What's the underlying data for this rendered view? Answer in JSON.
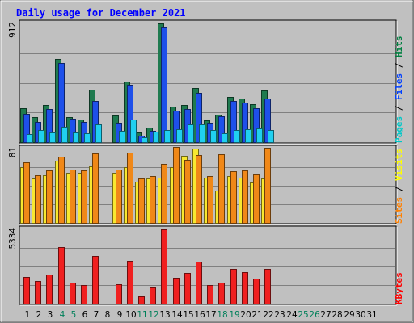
{
  "chart_data": {
    "type": "bar",
    "title": "Daily usage for December 2021",
    "days": [
      "1",
      "2",
      "3",
      "4",
      "5",
      "6",
      "7",
      "8",
      "9",
      "10",
      "11",
      "12",
      "13",
      "14",
      "15",
      "16",
      "17",
      "18",
      "19",
      "20",
      "21",
      "22",
      "23",
      "24",
      "25",
      "26",
      "27",
      "28",
      "29",
      "30",
      "31"
    ],
    "weekend_days": [
      4,
      5,
      11,
      12,
      18,
      19,
      25,
      26
    ],
    "panels": [
      {
        "id": "hits-files-pages",
        "max_label": "912",
        "max": 912,
        "legend": [
          {
            "text": "Pages",
            "color": "#00c8c8"
          },
          {
            "text": " / ",
            "color": "#000000"
          },
          {
            "text": "Files",
            "color": "#0040ff"
          },
          {
            "text": " / ",
            "color": "#000000"
          },
          {
            "text": "Hits",
            "color": "#008040"
          }
        ],
        "series": [
          {
            "name": "Hits",
            "color": "#1f7a4f",
            "offset": 0,
            "values": [
              262,
              190,
              283,
              639,
              194,
              172,
              402,
              0,
              207,
              467,
              75,
              110,
              912,
              276,
              286,
              415,
              168,
              210,
              345,
              333,
              294,
              397,
              0,
              0,
              0,
              0,
              0,
              0,
              0,
              0,
              0
            ]
          },
          {
            "name": "Files",
            "color": "#1e50ea",
            "offset": 4,
            "values": [
              218,
              157,
              253,
              609,
              178,
              158,
              318,
              0,
              146,
              441,
              52,
              86,
              882,
              239,
              256,
              381,
              149,
              197,
              319,
              302,
              259,
              336,
              0,
              0,
              0,
              0,
              0,
              0,
              0,
              0,
              0
            ]
          },
          {
            "name": "Pages",
            "color": "#20d0f0",
            "offset": 8,
            "values": [
              64,
              95,
              77,
              116,
              72,
              67,
              136,
              0,
              84,
              172,
              37,
              78,
              95,
              102,
              138,
              139,
              95,
              68,
              95,
              101,
              105,
              91,
              0,
              0,
              0,
              0,
              0,
              0,
              0,
              0,
              0
            ]
          }
        ]
      },
      {
        "id": "visits-sites",
        "max_label": "81",
        "max": 81,
        "legend": [
          {
            "text": "Sites",
            "color": "#ff8000"
          },
          {
            "text": " / ",
            "color": "#000000"
          },
          {
            "text": "Visits",
            "color": "#ffff00"
          }
        ],
        "series": [
          {
            "name": "Visits",
            "color": "#f8e830",
            "offset": 0,
            "values": [
              61,
              48,
              52,
              68,
              55,
              55,
              62,
              0,
              55,
              61,
              45,
              48,
              49,
              61,
              73,
              81,
              49,
              35,
              51,
              49,
              44,
              48,
              0,
              0,
              0,
              0,
              0,
              0,
              0,
              0,
              0
            ]
          },
          {
            "name": "Sites",
            "color": "#f08818",
            "offset": 4,
            "values": [
              66,
              52,
              57,
              72,
              58,
              57,
              76,
              0,
              58,
              77,
              48,
              51,
              64,
              83,
              69,
              74,
              51,
              75,
              56,
              57,
              53,
              82,
              0,
              0,
              0,
              0,
              0,
              0,
              0,
              0,
              0
            ]
          }
        ]
      },
      {
        "id": "kbytes",
        "max_label": "5334",
        "max": 5334,
        "legend": [
          {
            "text": "KBytes",
            "color": "#ff0000"
          }
        ],
        "series": [
          {
            "name": "KBytes",
            "color": "#f02020",
            "offset": 4,
            "values": [
              1899,
              1646,
              2094,
              4076,
              1492,
              1356,
              3411,
              0,
              1386,
              3096,
              536,
              1138,
              5334,
              1836,
              2225,
              3034,
              1343,
              1484,
              2522,
              2287,
              1815,
              2522,
              0,
              0,
              0,
              0,
              0,
              0,
              0,
              0,
              0
            ]
          }
        ]
      }
    ]
  }
}
